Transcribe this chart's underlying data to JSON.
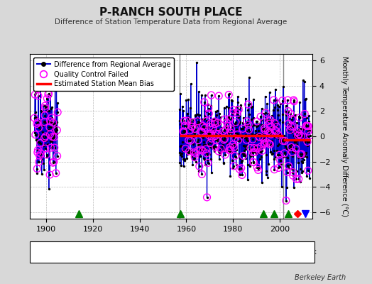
{
  "title": "P-RANCH SOUTH PLACE",
  "subtitle": "Difference of Station Temperature Data from Regional Average",
  "ylabel": "Monthly Temperature Anomaly Difference (°C)",
  "xlabel_ticks": [
    1900,
    1920,
    1940,
    1960,
    1980,
    2000
  ],
  "ylim": [
    -6.5,
    6.5
  ],
  "yticks": [
    -6,
    -4,
    -2,
    0,
    2,
    4,
    6
  ],
  "bg_color": "#d8d8d8",
  "plot_bg_color": "#ffffff",
  "grid_color": "#bbbbbb",
  "seed": 42,
  "period1_start": 1895.0,
  "period1_end": 1905.0,
  "period2_start": 1957.0,
  "period2_end": 2013.0,
  "bias1": 0.55,
  "bias2": 0.05,
  "bias3": -0.3,
  "bias2_start": 2001.5,
  "record_gap_years": [
    1914.0,
    1957.5,
    1993.0,
    1997.5,
    2003.5
  ],
  "station_move_year": 2007.5,
  "time_obs_change_year": 2011.0,
  "vertical_line_x1": 1957.0,
  "vertical_line_x2": 2001.5,
  "vertical_line_color": "#888888",
  "line_color": "#0000cc",
  "dot_color": "#000000",
  "qc_color": "#ff00ff",
  "bias_color": "#ff0000",
  "footer_text": "Berkeley Earth",
  "xlim_left": 1893,
  "xlim_right": 2014
}
